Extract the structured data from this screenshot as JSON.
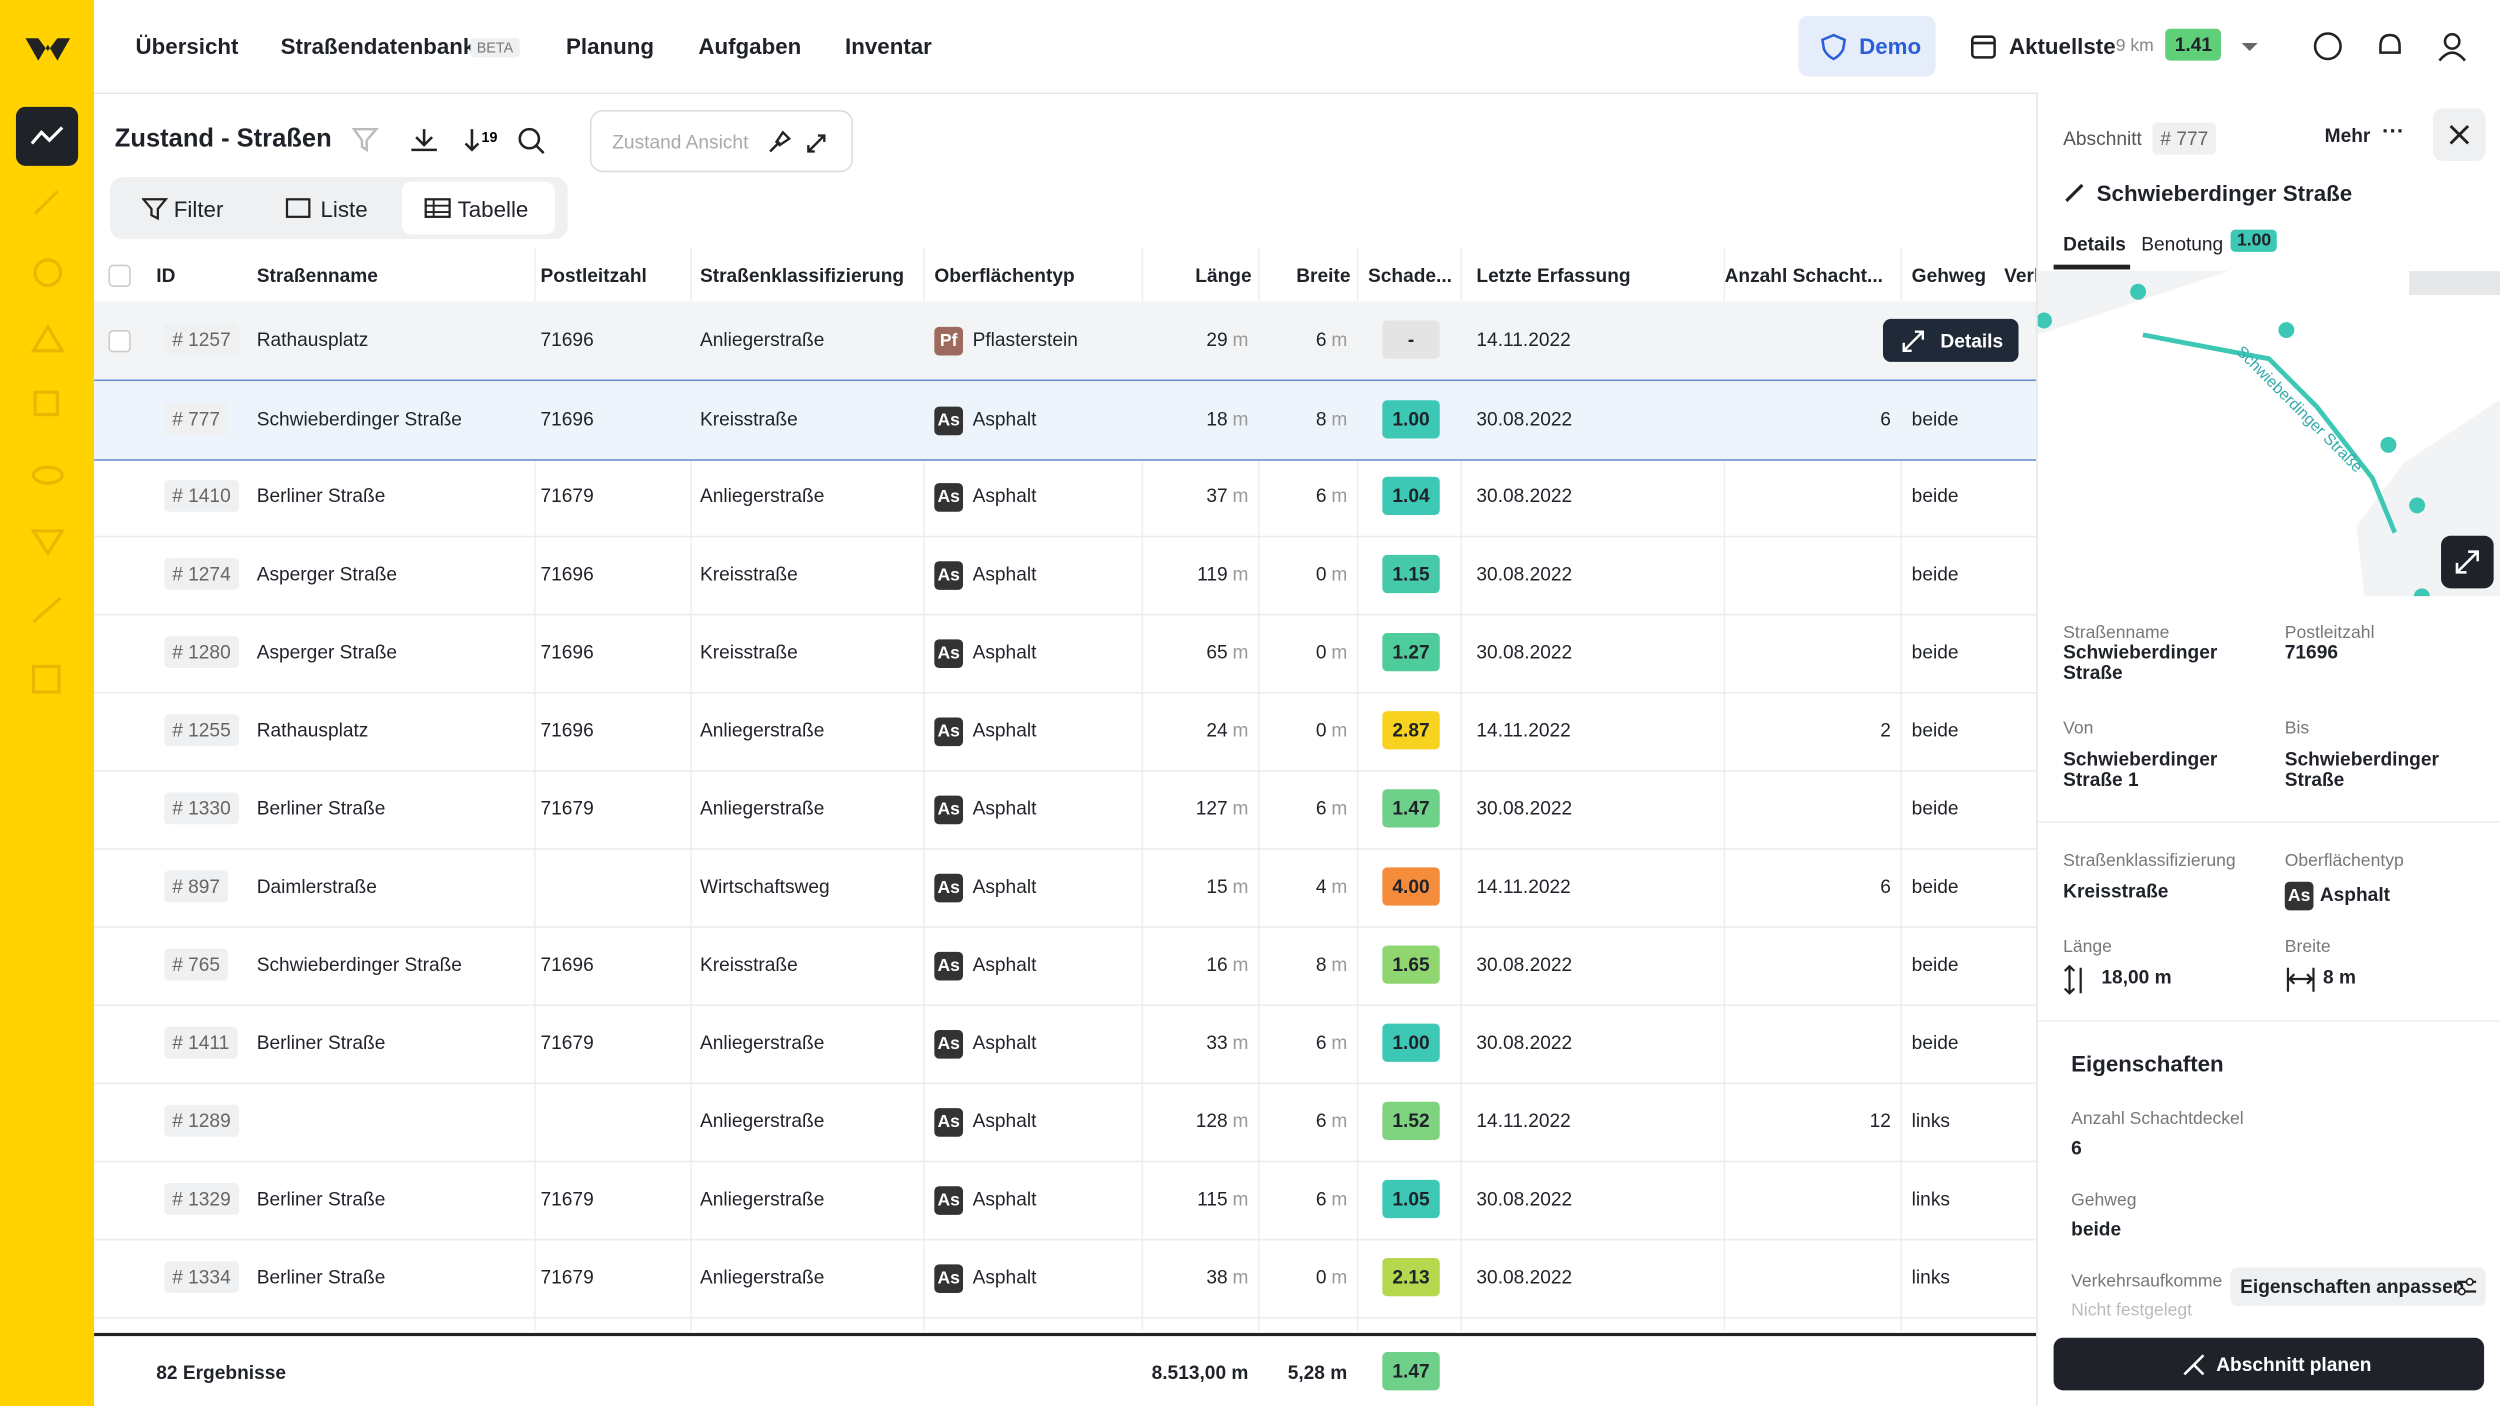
{
  "nav": {
    "items": [
      "Übersicht",
      "Straßendatenbank",
      "Planung",
      "Aufgaben",
      "Inventar"
    ],
    "beta": "BETA",
    "demo": "Demo",
    "dataset": "Aktuellste",
    "distance": "9 km",
    "score": "1.41"
  },
  "toolbar": {
    "title": "Zustand - Straßen",
    "view_placeholder": "Zustand Ansicht",
    "tabs": [
      "Filter",
      "Liste",
      "Tabelle"
    ]
  },
  "table": {
    "columns": [
      "ID",
      "Straßenname",
      "Postleitzahl",
      "Straßenklassifizierung",
      "Oberflächentyp",
      "Länge",
      "Breite",
      "Schade...",
      "Letzte Erfassung",
      "Anzahl Schacht...",
      "Gehweg",
      "Verl"
    ],
    "unit": "m",
    "details_button": "Details",
    "rows": [
      {
        "id": "# 1257",
        "name": "Rathausplatz",
        "plz": "71696",
        "class": "Anliegerstraße",
        "surface_abbr": "Pf",
        "surface": "Pflasterstein",
        "length": "29",
        "width": "6",
        "score": "-",
        "score_color": "#e4e4e4",
        "date": "14.11.2022",
        "count": null,
        "gehweg": null
      },
      {
        "id": "# 777",
        "name": "Schwieberdinger Straße",
        "plz": "71696",
        "class": "Kreisstraße",
        "surface_abbr": "As",
        "surface": "Asphalt",
        "length": "18",
        "width": "8",
        "score": "1.00",
        "score_color": "#3cc8b4",
        "date": "30.08.2022",
        "count": "6",
        "gehweg": "beide"
      },
      {
        "id": "# 1410",
        "name": "Berliner Straße",
        "plz": "71679",
        "class": "Anliegerstraße",
        "surface_abbr": "As",
        "surface": "Asphalt",
        "length": "37",
        "width": "6",
        "score": "1.04",
        "score_color": "#3cc8b4",
        "date": "30.08.2022",
        "count": null,
        "gehweg": "beide"
      },
      {
        "id": "# 1274",
        "name": "Asperger Straße",
        "plz": "71696",
        "class": "Kreisstraße",
        "surface_abbr": "As",
        "surface": "Asphalt",
        "length": "119",
        "width": "0",
        "score": "1.15",
        "score_color": "#45c9a8",
        "date": "30.08.2022",
        "count": null,
        "gehweg": "beide"
      },
      {
        "id": "# 1280",
        "name": "Asperger Straße",
        "plz": "71696",
        "class": "Kreisstraße",
        "surface_abbr": "As",
        "surface": "Asphalt",
        "length": "65",
        "width": "0",
        "score": "1.27",
        "score_color": "#4fcc9c",
        "date": "30.08.2022",
        "count": null,
        "gehweg": "beide"
      },
      {
        "id": "# 1255",
        "name": "Rathausplatz",
        "plz": "71696",
        "class": "Anliegerstraße",
        "surface_abbr": "As",
        "surface": "Asphalt",
        "length": "24",
        "width": "0",
        "score": "2.87",
        "score_color": "#f7d21e",
        "date": "14.11.2022",
        "count": "2",
        "gehweg": "beide"
      },
      {
        "id": "# 1330",
        "name": "Berliner Straße",
        "plz": "71679",
        "class": "Anliegerstraße",
        "surface_abbr": "As",
        "surface": "Asphalt",
        "length": "127",
        "width": "6",
        "score": "1.47",
        "score_color": "#6fd08a",
        "date": "30.08.2022",
        "count": null,
        "gehweg": "beide"
      },
      {
        "id": "# 897",
        "name": "Daimlerstraße",
        "plz": null,
        "class": "Wirtschaftsweg",
        "surface_abbr": "As",
        "surface": "Asphalt",
        "length": "15",
        "width": "4",
        "score": "4.00",
        "score_color": "#f58c3c",
        "date": "14.11.2022",
        "count": "6",
        "gehweg": "beide"
      },
      {
        "id": "# 765",
        "name": "Schwieberdinger Straße",
        "plz": "71696",
        "class": "Kreisstraße",
        "surface_abbr": "As",
        "surface": "Asphalt",
        "length": "16",
        "width": "8",
        "score": "1.65",
        "score_color": "#8fd671",
        "date": "30.08.2022",
        "count": null,
        "gehweg": "beide"
      },
      {
        "id": "# 1411",
        "name": "Berliner Straße",
        "plz": "71679",
        "class": "Anliegerstraße",
        "surface_abbr": "As",
        "surface": "Asphalt",
        "length": "33",
        "width": "6",
        "score": "1.00",
        "score_color": "#3cc8b4",
        "date": "30.08.2022",
        "count": null,
        "gehweg": "beide"
      },
      {
        "id": "# 1289",
        "name": null,
        "plz": null,
        "class": "Anliegerstraße",
        "surface_abbr": "As",
        "surface": "Asphalt",
        "length": "128",
        "width": "6",
        "score": "1.52",
        "score_color": "#7ed37e",
        "date": "14.11.2022",
        "count": "12",
        "gehweg": "links"
      },
      {
        "id": "# 1329",
        "name": "Berliner Straße",
        "plz": "71679",
        "class": "Anliegerstraße",
        "surface_abbr": "As",
        "surface": "Asphalt",
        "length": "115",
        "width": "6",
        "score": "1.05",
        "score_color": "#3cc8b4",
        "date": "30.08.2022",
        "count": null,
        "gehweg": "links"
      },
      {
        "id": "# 1334",
        "name": "Berliner Straße",
        "plz": "71679",
        "class": "Anliegerstraße",
        "surface_abbr": "As",
        "surface": "Asphalt",
        "length": "38",
        "width": "0",
        "score": "2.13",
        "score_color": "#b5d84e",
        "date": "30.08.2022",
        "count": null,
        "gehweg": "links"
      }
    ],
    "footer": {
      "results": "82 Ergebnisse",
      "length": "8.513,00 m",
      "width": "5,28 m",
      "score": "1.47",
      "score_color": "#6fd08a"
    }
  },
  "panel": {
    "section_label": "Abschnitt",
    "section_id": "# 777",
    "more": "Mehr",
    "title": "Schwieberdinger Straße",
    "tabs": [
      "Details",
      "Benotung"
    ],
    "rating": "1.00",
    "fields": [
      {
        "label": "Straßenname",
        "value": "Schwieberdinger Straße"
      },
      {
        "label": "Postleitzahl",
        "value": "71696"
      },
      {
        "label": "Von",
        "value": "Schwieberdinger Straße 1"
      },
      {
        "label": "Bis",
        "value": "Schwieberdinger Straße"
      },
      {
        "label": "Straßenklassifizierung",
        "value": "Kreisstraße"
      },
      {
        "label": "Oberflächentyp",
        "value": "Asphalt",
        "abbr": "As"
      },
      {
        "label": "Länge",
        "value": "18,00 m"
      },
      {
        "label": "Breite",
        "value": "8 m"
      }
    ],
    "properties_title": "Eigenschaften",
    "properties": [
      {
        "label": "Anzahl Schachtdeckel",
        "value": "6"
      },
      {
        "label": "Gehweg",
        "value": "beide"
      },
      {
        "label": "Verkehrsaufkomme",
        "value": "Nicht festgelegt"
      }
    ],
    "adjust_button": "Eigenschaften anpassen",
    "plan_button": "Abschnitt planen"
  }
}
